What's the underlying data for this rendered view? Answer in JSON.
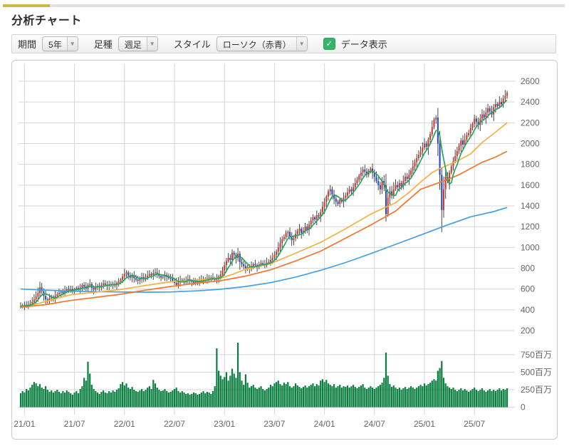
{
  "header": {
    "title": "分析チャート"
  },
  "toolbar": {
    "period_label": "期間",
    "period_value": "5年",
    "bar_type_label": "足種",
    "bar_type_value": "週足",
    "style_label": "スタイル",
    "style_value": "ローソク（赤青）",
    "dropdown_arrow": "▼",
    "data_display_label": "データ表示",
    "data_display_checked": true,
    "checkmark": "✓"
  },
  "colors": {
    "accent_gold": "#d3b447",
    "accent_gray": "#e1e1e1",
    "candle_up": "#cf3b2f",
    "candle_down": "#2d49c3",
    "candle_wick": "#333333",
    "ma_green": "#27a35f",
    "ma_yellow": "#f2b143",
    "ma_orange": "#f2762b",
    "ma_blue": "#44a0e4",
    "volume_bar": "#0a7f3f",
    "gridline": "#d6d6d6",
    "axis_text": "#666666",
    "checkbox_green": "#35b56b"
  },
  "chart_data": {
    "type": "candlestick_with_volume",
    "title": "分析チャート 5年 週足",
    "grid": true,
    "legend": "none",
    "x_ticks": [
      {
        "label": "21/01",
        "week": 2
      },
      {
        "label": "21/07",
        "week": 28
      },
      {
        "label": "22/01",
        "week": 54
      },
      {
        "label": "22/07",
        "week": 80
      },
      {
        "label": "23/01",
        "week": 106
      },
      {
        "label": "23/07",
        "week": 132
      },
      {
        "label": "24/01",
        "week": 158
      },
      {
        "label": "24/07",
        "week": 184
      },
      {
        "label": "25/01",
        "week": 210
      },
      {
        "label": "25/07",
        "week": 236
      }
    ],
    "price_axis": {
      "side": "right",
      "tick_min": 200,
      "tick_max": 2600,
      "tick_step": 200,
      "ticks": [
        2600,
        2400,
        2200,
        2000,
        1800,
        1600,
        1400,
        1200,
        1000,
        800,
        600,
        400,
        200
      ]
    },
    "volume_axis": {
      "side": "right",
      "unit": "百万",
      "ticks": [
        {
          "label": "750百万",
          "value": 750
        },
        {
          "label": "500百万",
          "value": 500
        },
        {
          "label": "250百万",
          "value": 250
        },
        {
          "label": "0",
          "value": 0
        }
      ]
    },
    "weeks": 254,
    "weekly_closes": [
      435,
      442,
      438,
      450,
      447,
      460,
      475,
      500,
      530,
      560,
      615,
      580,
      535,
      500,
      495,
      510,
      525,
      515,
      535,
      550,
      565,
      575,
      560,
      585,
      600,
      590,
      600,
      585,
      595,
      610,
      600,
      615,
      640,
      625,
      605,
      640,
      650,
      610,
      595,
      615,
      630,
      620,
      640,
      655,
      640,
      630,
      645,
      635,
      650,
      640,
      660,
      675,
      690,
      720,
      745,
      760,
      730,
      710,
      725,
      705,
      690,
      680,
      700,
      715,
      695,
      710,
      730,
      745,
      735,
      755,
      760,
      740,
      725,
      710,
      720,
      735,
      715,
      705,
      700,
      680,
      660,
      640,
      665,
      680,
      690,
      675,
      685,
      695,
      680,
      670,
      660,
      675,
      665,
      680,
      690,
      685,
      695,
      705,
      695,
      710,
      700,
      690,
      705,
      720,
      740,
      780,
      830,
      870,
      900,
      880,
      950,
      930,
      900,
      940,
      860,
      840,
      820,
      800,
      810,
      795,
      820,
      840,
      830,
      815,
      835,
      850,
      840,
      830,
      855,
      860,
      880,
      900,
      930,
      960,
      1000,
      1040,
      1080,
      1100,
      1140,
      1150,
      1100,
      1070,
      1090,
      1130,
      1160,
      1180,
      1140,
      1160,
      1200,
      1170,
      1220,
      1260,
      1290,
      1270,
      1310,
      1300,
      1340,
      1390,
      1440,
      1490,
      1540,
      1560,
      1510,
      1470,
      1440,
      1420,
      1460,
      1440,
      1480,
      1500,
      1530,
      1560,
      1540,
      1580,
      1620,
      1650,
      1690,
      1720,
      1750,
      1730,
      1700,
      1740,
      1760,
      1720,
      1680,
      1640,
      1600,
      1560,
      1640,
      1600,
      1320,
      1480,
      1540,
      1500,
      1560,
      1600,
      1580,
      1620,
      1590,
      1640,
      1680,
      1660,
      1700,
      1740,
      1780,
      1820,
      1860,
      1890,
      1920,
      1960,
      2000,
      1970,
      2040,
      2090,
      2160,
      2230,
      2250,
      2000,
      1700,
      1360,
      1560,
      1680,
      1640,
      1720,
      1780,
      1830,
      1880,
      1930,
      1980,
      2030,
      1990,
      2040,
      2080,
      2100,
      2150,
      2190,
      2240,
      2210,
      2180,
      2240,
      2280,
      2250,
      2300,
      2340,
      2310,
      2280,
      2350,
      2380,
      2360,
      2400,
      2380,
      2430,
      2460,
      2490
    ],
    "weekly_volumes_millions": [
      200,
      230,
      210,
      260,
      240,
      280,
      320,
      360,
      340,
      300,
      330,
      280,
      260,
      300,
      250,
      220,
      240,
      210,
      230,
      250,
      220,
      200,
      230,
      210,
      240,
      220,
      200,
      180,
      210,
      230,
      200,
      260,
      300,
      420,
      380,
      650,
      480,
      320,
      260,
      230,
      210,
      190,
      220,
      240,
      210,
      200,
      230,
      210,
      240,
      220,
      250,
      270,
      330,
      360,
      310,
      340,
      280,
      260,
      290,
      250,
      230,
      220,
      240,
      260,
      230,
      250,
      280,
      300,
      260,
      390,
      340,
      280,
      250,
      230,
      240,
      260,
      230,
      210,
      220,
      240,
      260,
      280,
      230,
      210,
      230,
      210,
      190,
      200,
      180,
      190,
      210,
      200,
      180,
      190,
      210,
      230,
      200,
      220,
      210,
      190,
      230,
      300,
      840,
      520,
      450,
      400,
      430,
      500,
      380,
      450,
      550,
      480,
      420,
      920,
      500,
      380,
      320,
      470,
      350,
      280,
      300,
      320,
      280,
      260,
      280,
      300,
      260,
      240,
      260,
      280,
      320,
      300,
      340,
      360,
      380,
      330,
      310,
      350,
      330,
      360,
      300,
      280,
      300,
      340,
      310,
      290,
      270,
      290,
      310,
      280,
      300,
      320,
      340,
      300,
      330,
      310,
      380,
      400,
      360,
      390,
      340,
      320,
      300,
      330,
      280,
      300,
      320,
      280,
      300,
      290,
      310,
      280,
      300,
      320,
      290,
      270,
      290,
      310,
      330,
      280,
      260,
      280,
      300,
      280,
      260,
      280,
      300,
      320,
      350,
      420,
      780,
      450,
      330,
      290,
      310,
      280,
      260,
      280,
      250,
      270,
      290,
      260,
      280,
      300,
      280,
      260,
      280,
      300,
      320,
      300,
      340,
      310,
      330,
      350,
      380,
      400,
      380,
      520,
      560,
      660,
      420,
      340,
      300,
      280,
      260,
      280,
      250,
      230,
      250,
      270,
      240,
      260,
      240,
      220,
      240,
      260,
      280,
      250,
      230,
      250,
      270,
      240,
      220,
      240,
      260,
      230,
      250,
      230,
      250,
      270,
      240,
      260,
      250,
      270
    ],
    "moving_averages": {
      "green_short": {
        "derived": "sma_of_weekly_closes",
        "window": 6
      },
      "yellow_mid": {
        "points": [
          [
            0,
            430
          ],
          [
            8,
            455
          ],
          [
            16,
            495
          ],
          [
            26,
            545
          ],
          [
            39,
            570
          ],
          [
            52,
            595
          ],
          [
            65,
            635
          ],
          [
            78,
            670
          ],
          [
            91,
            685
          ],
          [
            104,
            705
          ],
          [
            110,
            740
          ],
          [
            117,
            790
          ],
          [
            130,
            845
          ],
          [
            143,
            945
          ],
          [
            156,
            1050
          ],
          [
            169,
            1180
          ],
          [
            182,
            1320
          ],
          [
            190,
            1390
          ],
          [
            195,
            1430
          ],
          [
            202,
            1530
          ],
          [
            208,
            1630
          ],
          [
            214,
            1720
          ],
          [
            218,
            1760
          ],
          [
            222,
            1790
          ],
          [
            228,
            1840
          ],
          [
            234,
            1900
          ],
          [
            240,
            2010
          ],
          [
            247,
            2110
          ],
          [
            253,
            2200
          ]
        ]
      },
      "orange_long": {
        "points": [
          [
            0,
            425
          ],
          [
            13,
            450
          ],
          [
            26,
            490
          ],
          [
            39,
            520
          ],
          [
            52,
            550
          ],
          [
            65,
            590
          ],
          [
            78,
            625
          ],
          [
            91,
            655
          ],
          [
            104,
            680
          ],
          [
            117,
            725
          ],
          [
            130,
            785
          ],
          [
            143,
            870
          ],
          [
            156,
            965
          ],
          [
            169,
            1090
          ],
          [
            182,
            1215
          ],
          [
            195,
            1350
          ],
          [
            208,
            1560
          ],
          [
            214,
            1600
          ],
          [
            220,
            1640
          ],
          [
            228,
            1700
          ],
          [
            234,
            1760
          ],
          [
            240,
            1820
          ],
          [
            247,
            1870
          ],
          [
            253,
            1925
          ]
        ]
      },
      "blue_longest": {
        "points": [
          [
            0,
            600
          ],
          [
            13,
            590
          ],
          [
            26,
            580
          ],
          [
            39,
            575
          ],
          [
            52,
            572
          ],
          [
            65,
            570
          ],
          [
            78,
            572
          ],
          [
            91,
            582
          ],
          [
            104,
            598
          ],
          [
            117,
            625
          ],
          [
            130,
            662
          ],
          [
            143,
            715
          ],
          [
            156,
            780
          ],
          [
            169,
            855
          ],
          [
            182,
            940
          ],
          [
            195,
            1030
          ],
          [
            208,
            1120
          ],
          [
            221,
            1210
          ],
          [
            234,
            1295
          ],
          [
            246,
            1345
          ],
          [
            253,
            1385
          ]
        ]
      }
    }
  }
}
